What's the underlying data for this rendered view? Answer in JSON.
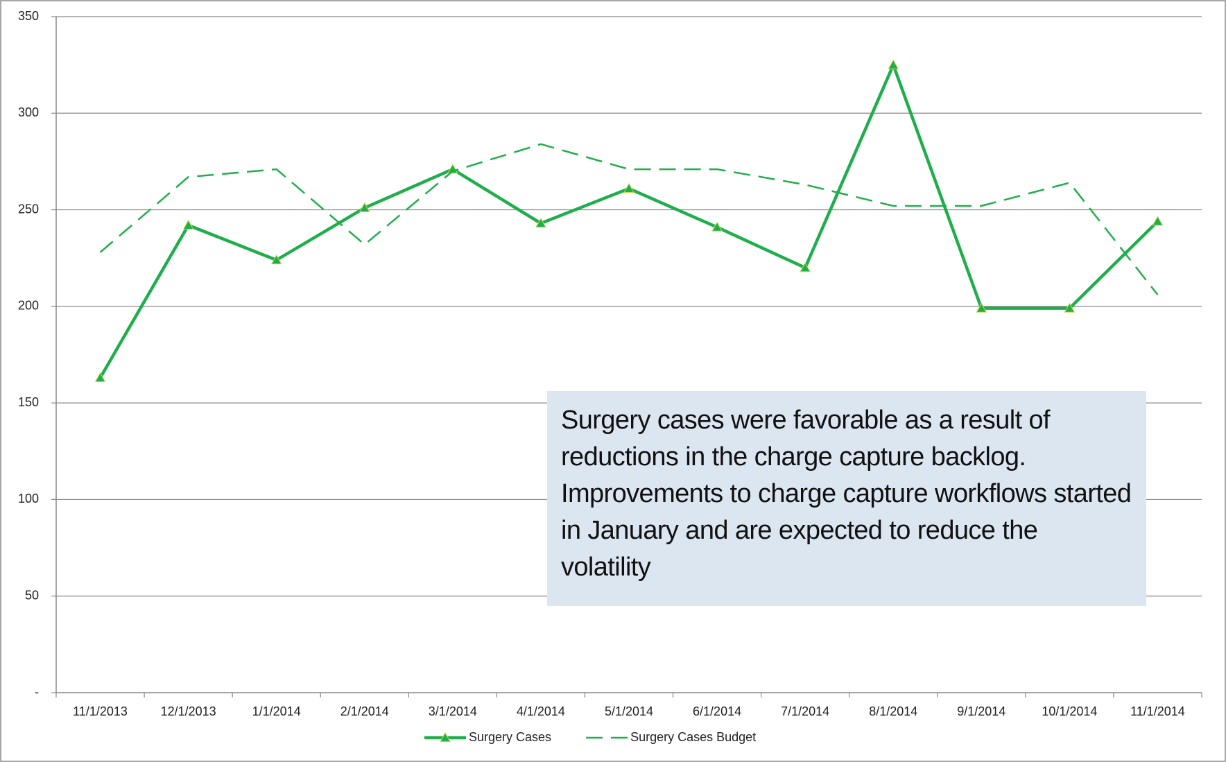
{
  "chart_data": {
    "type": "line",
    "categories": [
      "11/1/2013",
      "12/1/2013",
      "1/1/2014",
      "2/1/2014",
      "3/1/2014",
      "4/1/2014",
      "5/1/2014",
      "6/1/2014",
      "7/1/2014",
      "8/1/2014",
      "9/1/2014",
      "10/1/2014",
      "11/1/2014"
    ],
    "series": [
      {
        "name": "Surgery Cases",
        "color": "#1fae4b",
        "dashed": false,
        "marker": "triangle",
        "values": [
          163,
          242,
          224,
          251,
          271,
          243,
          261,
          241,
          220,
          325,
          199,
          199,
          244
        ]
      },
      {
        "name": "Surgery Cases Budget",
        "color": "#1fae4b",
        "dashed": true,
        "values": [
          228,
          267,
          271,
          232,
          270,
          284,
          271,
          271,
          263,
          252,
          252,
          264,
          206
        ]
      }
    ],
    "ylim": [
      0,
      350
    ],
    "yticks": [
      {
        "value": 0,
        "label": "-"
      },
      50,
      100,
      150,
      200,
      250,
      300,
      350
    ],
    "grid": true,
    "legend": "bottom",
    "annotation": "Surgery cases were favorable as a result of reductions in the charge capture backlog. Improvements to charge capture workflows started in January and are expected to reduce the volatility"
  }
}
